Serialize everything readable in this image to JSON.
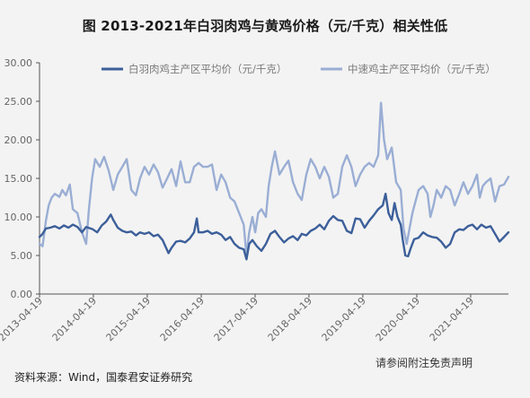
{
  "title": "图 2013-2021年白羽肉鸡与黄鸡价格（元/千克）相关性低",
  "source": "资料来源：Wind，国泰君安证券研究",
  "disclaimer": "请参阅附注免责声明",
  "chart_data": {
    "type": "line",
    "title": "图 2013-2021年白羽肉鸡与黄鸡价格（元/千克）相关性低",
    "xlabel": "",
    "ylabel": "",
    "ylim": [
      0,
      30
    ],
    "xlim": [
      "2013-04-19",
      "2021-12-31"
    ],
    "yticks": [
      "0.00",
      "5.00",
      "10.00",
      "15.00",
      "20.00",
      "25.00",
      "30.00"
    ],
    "xticks": [
      "2013-04-19",
      "2014-04-19",
      "2015-04-19",
      "2016-04-19",
      "2017-04-19",
      "2018-04-19",
      "2019-04-19",
      "2020-04-19",
      "2021-04-19"
    ],
    "grid": false,
    "legend": "top",
    "series": [
      {
        "name": "白羽肉鸡主产区平均价（元/千克）",
        "color": "#3c5f9a",
        "points": [
          [
            "2013-04-19",
            7.4
          ],
          [
            "2013-05-10",
            7.8
          ],
          [
            "2013-06-01",
            8.5
          ],
          [
            "2013-07-01",
            8.6
          ],
          [
            "2013-08-01",
            8.8
          ],
          [
            "2013-09-01",
            8.5
          ],
          [
            "2013-10-01",
            8.9
          ],
          [
            "2013-11-01",
            8.6
          ],
          [
            "2013-12-01",
            9.0
          ],
          [
            "2014-01-01",
            8.7
          ],
          [
            "2014-02-01",
            8.0
          ],
          [
            "2014-03-01",
            8.7
          ],
          [
            "2014-04-15",
            8.4
          ],
          [
            "2014-05-15",
            8.0
          ],
          [
            "2014-06-15",
            8.9
          ],
          [
            "2014-07-15",
            9.4
          ],
          [
            "2014-08-15",
            10.3
          ],
          [
            "2014-09-01",
            9.6
          ],
          [
            "2014-10-01",
            8.6
          ],
          [
            "2014-11-01",
            8.2
          ],
          [
            "2014-12-01",
            8.0
          ],
          [
            "2015-01-01",
            8.1
          ],
          [
            "2015-02-01",
            7.6
          ],
          [
            "2015-03-01",
            8.0
          ],
          [
            "2015-04-01",
            7.8
          ],
          [
            "2015-05-01",
            8.0
          ],
          [
            "2015-06-01",
            7.5
          ],
          [
            "2015-07-01",
            7.7
          ],
          [
            "2015-08-01",
            7.0
          ],
          [
            "2015-08-20",
            6.2
          ],
          [
            "2015-09-10",
            5.3
          ],
          [
            "2015-10-01",
            6.0
          ],
          [
            "2015-11-01",
            6.8
          ],
          [
            "2015-12-01",
            6.9
          ],
          [
            "2016-01-01",
            6.7
          ],
          [
            "2016-02-01",
            7.2
          ],
          [
            "2016-03-01",
            8.0
          ],
          [
            "2016-03-20",
            9.8
          ],
          [
            "2016-04-01",
            8.0
          ],
          [
            "2016-05-01",
            8.0
          ],
          [
            "2016-06-01",
            8.2
          ],
          [
            "2016-07-01",
            7.8
          ],
          [
            "2016-08-01",
            8.0
          ],
          [
            "2016-09-01",
            7.7
          ],
          [
            "2016-10-01",
            7.0
          ],
          [
            "2016-11-01",
            7.4
          ],
          [
            "2016-12-01",
            6.5
          ],
          [
            "2017-01-01",
            6.0
          ],
          [
            "2017-02-01",
            5.8
          ],
          [
            "2017-02-20",
            4.5
          ],
          [
            "2017-03-10",
            6.5
          ],
          [
            "2017-04-01",
            7.0
          ],
          [
            "2017-05-01",
            6.2
          ],
          [
            "2017-06-01",
            5.6
          ],
          [
            "2017-07-01",
            6.5
          ],
          [
            "2017-08-01",
            7.8
          ],
          [
            "2017-09-01",
            8.2
          ],
          [
            "2017-10-01",
            7.4
          ],
          [
            "2017-11-01",
            6.7
          ],
          [
            "2017-12-01",
            7.2
          ],
          [
            "2018-01-01",
            7.5
          ],
          [
            "2018-02-01",
            7.0
          ],
          [
            "2018-03-01",
            7.8
          ],
          [
            "2018-04-01",
            7.6
          ],
          [
            "2018-05-01",
            8.2
          ],
          [
            "2018-06-01",
            8.5
          ],
          [
            "2018-07-01",
            9.0
          ],
          [
            "2018-08-01",
            8.4
          ],
          [
            "2018-09-01",
            9.5
          ],
          [
            "2018-10-01",
            10.1
          ],
          [
            "2018-11-01",
            9.6
          ],
          [
            "2018-12-01",
            9.5
          ],
          [
            "2019-01-01",
            8.2
          ],
          [
            "2019-02-01",
            7.9
          ],
          [
            "2019-03-01",
            9.8
          ],
          [
            "2019-04-01",
            9.7
          ],
          [
            "2019-05-01",
            8.6
          ],
          [
            "2019-06-01",
            9.5
          ],
          [
            "2019-07-01",
            10.2
          ],
          [
            "2019-08-01",
            11.0
          ],
          [
            "2019-09-01",
            11.5
          ],
          [
            "2019-09-20",
            13.0
          ],
          [
            "2019-10-10",
            10.5
          ],
          [
            "2019-11-01",
            9.6
          ],
          [
            "2019-11-20",
            11.8
          ],
          [
            "2019-12-10",
            10.0
          ],
          [
            "2020-01-01",
            9.0
          ],
          [
            "2020-01-15",
            7.0
          ],
          [
            "2020-02-01",
            5.0
          ],
          [
            "2020-02-20",
            4.9
          ],
          [
            "2020-03-10",
            6.0
          ],
          [
            "2020-04-01",
            7.1
          ],
          [
            "2020-05-01",
            7.3
          ],
          [
            "2020-06-01",
            8.0
          ],
          [
            "2020-07-01",
            7.6
          ],
          [
            "2020-08-01",
            7.4
          ],
          [
            "2020-09-01",
            7.3
          ],
          [
            "2020-10-01",
            6.8
          ],
          [
            "2020-11-01",
            6.0
          ],
          [
            "2020-12-01",
            6.5
          ],
          [
            "2021-01-01",
            8.0
          ],
          [
            "2021-02-01",
            8.4
          ],
          [
            "2021-03-01",
            8.3
          ],
          [
            "2021-04-01",
            8.8
          ],
          [
            "2021-05-01",
            9.0
          ],
          [
            "2021-06-01",
            8.4
          ],
          [
            "2021-07-01",
            9.0
          ],
          [
            "2021-08-01",
            8.6
          ],
          [
            "2021-09-01",
            8.8
          ],
          [
            "2021-10-01",
            7.8
          ],
          [
            "2021-11-01",
            6.8
          ],
          [
            "2021-12-01",
            7.4
          ],
          [
            "2021-12-31",
            8.0
          ]
        ]
      },
      {
        "name": "中速鸡主产区平均价（元/千克）",
        "color": "#9aaed4",
        "points": [
          [
            "2013-04-19",
            6.5
          ],
          [
            "2013-05-10",
            6.2
          ],
          [
            "2013-06-01",
            9.5
          ],
          [
            "2013-06-20",
            11.5
          ],
          [
            "2013-07-10",
            12.5
          ],
          [
            "2013-08-01",
            13.0
          ],
          [
            "2013-09-01",
            12.6
          ],
          [
            "2013-09-20",
            13.5
          ],
          [
            "2013-10-15",
            12.8
          ],
          [
            "2013-11-10",
            14.2
          ],
          [
            "2013-12-01",
            11.0
          ],
          [
            "2014-01-01",
            10.5
          ],
          [
            "2014-02-01",
            8.0
          ],
          [
            "2014-03-01",
            6.5
          ],
          [
            "2014-03-20",
            11.0
          ],
          [
            "2014-04-10",
            15.0
          ],
          [
            "2014-05-01",
            17.5
          ],
          [
            "2014-06-01",
            16.5
          ],
          [
            "2014-07-01",
            17.8
          ],
          [
            "2014-08-01",
            16.0
          ],
          [
            "2014-09-01",
            13.5
          ],
          [
            "2014-10-01",
            15.5
          ],
          [
            "2014-11-01",
            16.5
          ],
          [
            "2014-12-01",
            17.5
          ],
          [
            "2015-01-01",
            13.5
          ],
          [
            "2015-02-01",
            12.8
          ],
          [
            "2015-03-01",
            15.0
          ],
          [
            "2015-04-01",
            16.5
          ],
          [
            "2015-05-01",
            15.5
          ],
          [
            "2015-06-01",
            16.8
          ],
          [
            "2015-07-01",
            15.8
          ],
          [
            "2015-08-01",
            13.8
          ],
          [
            "2015-09-01",
            15.0
          ],
          [
            "2015-10-01",
            16.2
          ],
          [
            "2015-11-01",
            14.0
          ],
          [
            "2015-12-01",
            17.2
          ],
          [
            "2016-01-01",
            14.5
          ],
          [
            "2016-02-01",
            14.5
          ],
          [
            "2016-03-01",
            16.5
          ],
          [
            "2016-04-01",
            17.0
          ],
          [
            "2016-05-01",
            16.5
          ],
          [
            "2016-06-01",
            16.5
          ],
          [
            "2016-07-01",
            16.8
          ],
          [
            "2016-08-01",
            13.5
          ],
          [
            "2016-09-01",
            15.5
          ],
          [
            "2016-10-01",
            14.5
          ],
          [
            "2016-11-01",
            12.5
          ],
          [
            "2016-12-01",
            12.0
          ],
          [
            "2017-01-01",
            10.5
          ],
          [
            "2017-02-01",
            9.0
          ],
          [
            "2017-02-20",
            5.0
          ],
          [
            "2017-03-10",
            8.0
          ],
          [
            "2017-04-01",
            10.0
          ],
          [
            "2017-04-20",
            8.0
          ],
          [
            "2017-05-10",
            10.5
          ],
          [
            "2017-06-01",
            11.0
          ],
          [
            "2017-07-01",
            10.0
          ],
          [
            "2017-07-20",
            14.0
          ],
          [
            "2017-08-10",
            16.5
          ],
          [
            "2017-09-01",
            18.5
          ],
          [
            "2017-10-01",
            15.5
          ],
          [
            "2017-11-01",
            16.5
          ],
          [
            "2017-12-01",
            17.3
          ],
          [
            "2018-01-01",
            14.5
          ],
          [
            "2018-02-01",
            13.0
          ],
          [
            "2018-03-01",
            12.2
          ],
          [
            "2018-04-01",
            15.5
          ],
          [
            "2018-05-01",
            17.5
          ],
          [
            "2018-06-01",
            16.5
          ],
          [
            "2018-07-01",
            15.0
          ],
          [
            "2018-08-01",
            16.5
          ],
          [
            "2018-09-01",
            15.2
          ],
          [
            "2018-10-01",
            12.5
          ],
          [
            "2018-11-01",
            13.0
          ],
          [
            "2018-12-01",
            16.5
          ],
          [
            "2019-01-01",
            18.0
          ],
          [
            "2019-02-01",
            16.5
          ],
          [
            "2019-03-01",
            14.0
          ],
          [
            "2019-04-01",
            15.5
          ],
          [
            "2019-05-01",
            16.5
          ],
          [
            "2019-06-01",
            17.0
          ],
          [
            "2019-07-01",
            16.5
          ],
          [
            "2019-08-01",
            18.0
          ],
          [
            "2019-08-20",
            24.8
          ],
          [
            "2019-09-10",
            20.0
          ],
          [
            "2019-10-01",
            17.5
          ],
          [
            "2019-11-01",
            19.0
          ],
          [
            "2019-12-01",
            14.5
          ],
          [
            "2020-01-01",
            13.5
          ],
          [
            "2020-01-20",
            8.5
          ],
          [
            "2020-02-10",
            6.5
          ],
          [
            "2020-03-01",
            8.5
          ],
          [
            "2020-03-20",
            10.5
          ],
          [
            "2020-04-10",
            12.0
          ],
          [
            "2020-05-01",
            13.5
          ],
          [
            "2020-06-01",
            14.0
          ],
          [
            "2020-07-01",
            13.0
          ],
          [
            "2020-07-20",
            10.0
          ],
          [
            "2020-08-10",
            11.5
          ],
          [
            "2020-09-01",
            13.5
          ],
          [
            "2020-10-01",
            12.5
          ],
          [
            "2020-11-01",
            14.0
          ],
          [
            "2020-12-01",
            13.5
          ],
          [
            "2021-01-01",
            11.5
          ],
          [
            "2021-02-01",
            13.0
          ],
          [
            "2021-03-01",
            14.5
          ],
          [
            "2021-04-01",
            13.0
          ],
          [
            "2021-05-01",
            14.0
          ],
          [
            "2021-06-01",
            15.5
          ],
          [
            "2021-06-20",
            12.5
          ],
          [
            "2021-07-10",
            14.0
          ],
          [
            "2021-08-01",
            14.5
          ],
          [
            "2021-09-01",
            15.0
          ],
          [
            "2021-10-01",
            12.0
          ],
          [
            "2021-11-01",
            14.0
          ],
          [
            "2021-12-01",
            14.2
          ],
          [
            "2021-12-31",
            15.2
          ]
        ]
      }
    ]
  }
}
